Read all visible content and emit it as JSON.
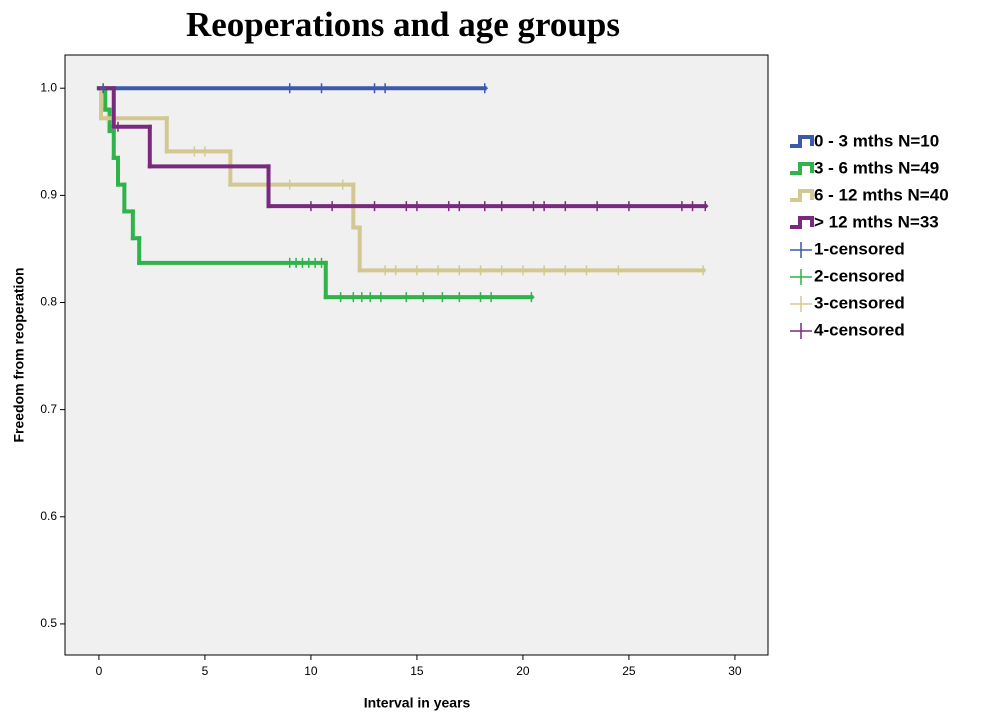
{
  "chart_data": {
    "type": "kaplan-meier",
    "title": "Reoperations and age groups",
    "x_label": "Interval in  years",
    "y_label": "Freedom from reoperation",
    "xlim": [
      -1.6,
      31.56
    ],
    "ylim": [
      0.471,
      1.031
    ],
    "xticks": [
      0,
      5,
      10,
      15,
      20,
      25,
      30
    ],
    "yticks": [
      0.5,
      0.6,
      0.7,
      0.8,
      0.9,
      {
        "value": 1,
        "label": "1.0"
      }
    ],
    "grid": false,
    "legend": "right",
    "series": [
      {
        "name": "0 - 3 mths N=10",
        "style": "step",
        "color": "#3e58ac",
        "x": [
          0,
          18.2
        ],
        "values": [
          1,
          1
        ]
      },
      {
        "name": "3 - 6 mths N=49",
        "style": "step",
        "color": "#2fb34a",
        "x": [
          0,
          0.3,
          0.5,
          0.7,
          0.9,
          1.2,
          1.6,
          1.9,
          10.7,
          20.4
        ],
        "values": [
          1,
          0.98,
          0.96,
          0.935,
          0.91,
          0.885,
          0.86,
          0.837,
          0.805,
          0.805
        ]
      },
      {
        "name": "6 - 12 mths N=40",
        "style": "step",
        "color": "#d3c891",
        "x": [
          0,
          0.1,
          3.2,
          6.2,
          12,
          12.3,
          28.5
        ],
        "values": [
          1,
          0.972,
          0.941,
          0.91,
          0.87,
          0.83,
          0.83
        ]
      },
      {
        "name": "> 12 mths N=33",
        "style": "step",
        "color": "#7a2a7e",
        "x": [
          0,
          0.7,
          2.4,
          8,
          28.6
        ],
        "values": [
          1,
          0.964,
          0.927,
          0.89,
          0.89
        ]
      },
      {
        "name": "1-censored",
        "style": "censor",
        "color": "#3e58ac",
        "x": [
          0.2,
          9,
          10.5,
          13,
          13.5,
          18.2
        ],
        "values": [
          1,
          1,
          1,
          1,
          1,
          1
        ]
      },
      {
        "name": "2-censored",
        "style": "censor",
        "color": "#2fb34a",
        "x": [
          9,
          9.3,
          9.6,
          9.9,
          10.2,
          10.5,
          11.4,
          12,
          12.4,
          12.8,
          13.3,
          14.5,
          15.3,
          16.2,
          17,
          18,
          18.5,
          20.4
        ],
        "values": [
          0.837,
          0.837,
          0.837,
          0.837,
          0.837,
          0.837,
          0.805,
          0.805,
          0.805,
          0.805,
          0.805,
          0.805,
          0.805,
          0.805,
          0.805,
          0.805,
          0.805,
          0.805
        ]
      },
      {
        "name": "3-censored",
        "style": "censor",
        "color": "#d3c891",
        "x": [
          0.4,
          4.5,
          5,
          9,
          11.5,
          13.5,
          14,
          15,
          16,
          17,
          18,
          19,
          20,
          21,
          22,
          23,
          24.5,
          28.5
        ],
        "values": [
          0.972,
          0.941,
          0.941,
          0.91,
          0.91,
          0.83,
          0.83,
          0.83,
          0.83,
          0.83,
          0.83,
          0.83,
          0.83,
          0.83,
          0.83,
          0.83,
          0.83,
          0.83
        ]
      },
      {
        "name": "4-censored",
        "style": "censor",
        "color": "#7a2a7e",
        "x": [
          0.9,
          10,
          11,
          13,
          14.5,
          15,
          16.5,
          17,
          18.2,
          19,
          20.5,
          21,
          22,
          23.5,
          25,
          27.5,
          28,
          28.6
        ],
        "values": [
          0.964,
          0.89,
          0.89,
          0.89,
          0.89,
          0.89,
          0.89,
          0.89,
          0.89,
          0.89,
          0.89,
          0.89,
          0.89,
          0.89,
          0.89,
          0.89,
          0.89,
          0.89
        ]
      }
    ]
  }
}
